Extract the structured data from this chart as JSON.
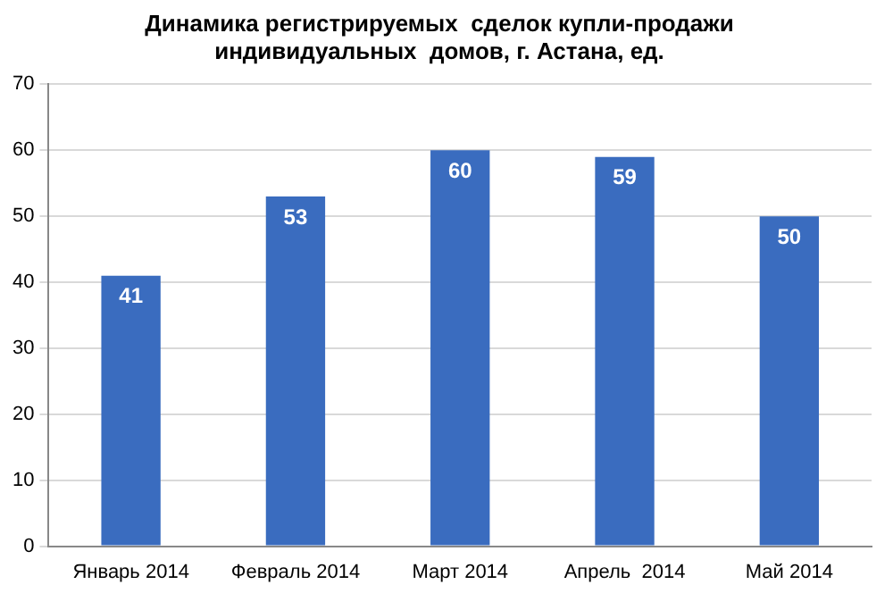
{
  "chart_data": {
    "type": "bar",
    "title": "Динамика регистрируемых  сделок купли-продажи\nиндивидуальных  домов, г. Астана, ед.",
    "categories": [
      "Январь 2014",
      "Февраль 2014",
      "Март 2014",
      "Апрель  2014",
      "Май 2014"
    ],
    "values": [
      41,
      53,
      60,
      59,
      50
    ],
    "color": "#3a6cbf",
    "ylim": [
      0,
      70
    ],
    "yticks": [
      0,
      10,
      20,
      30,
      40,
      50,
      60,
      70
    ],
    "grid": "y",
    "data_labels": true
  }
}
